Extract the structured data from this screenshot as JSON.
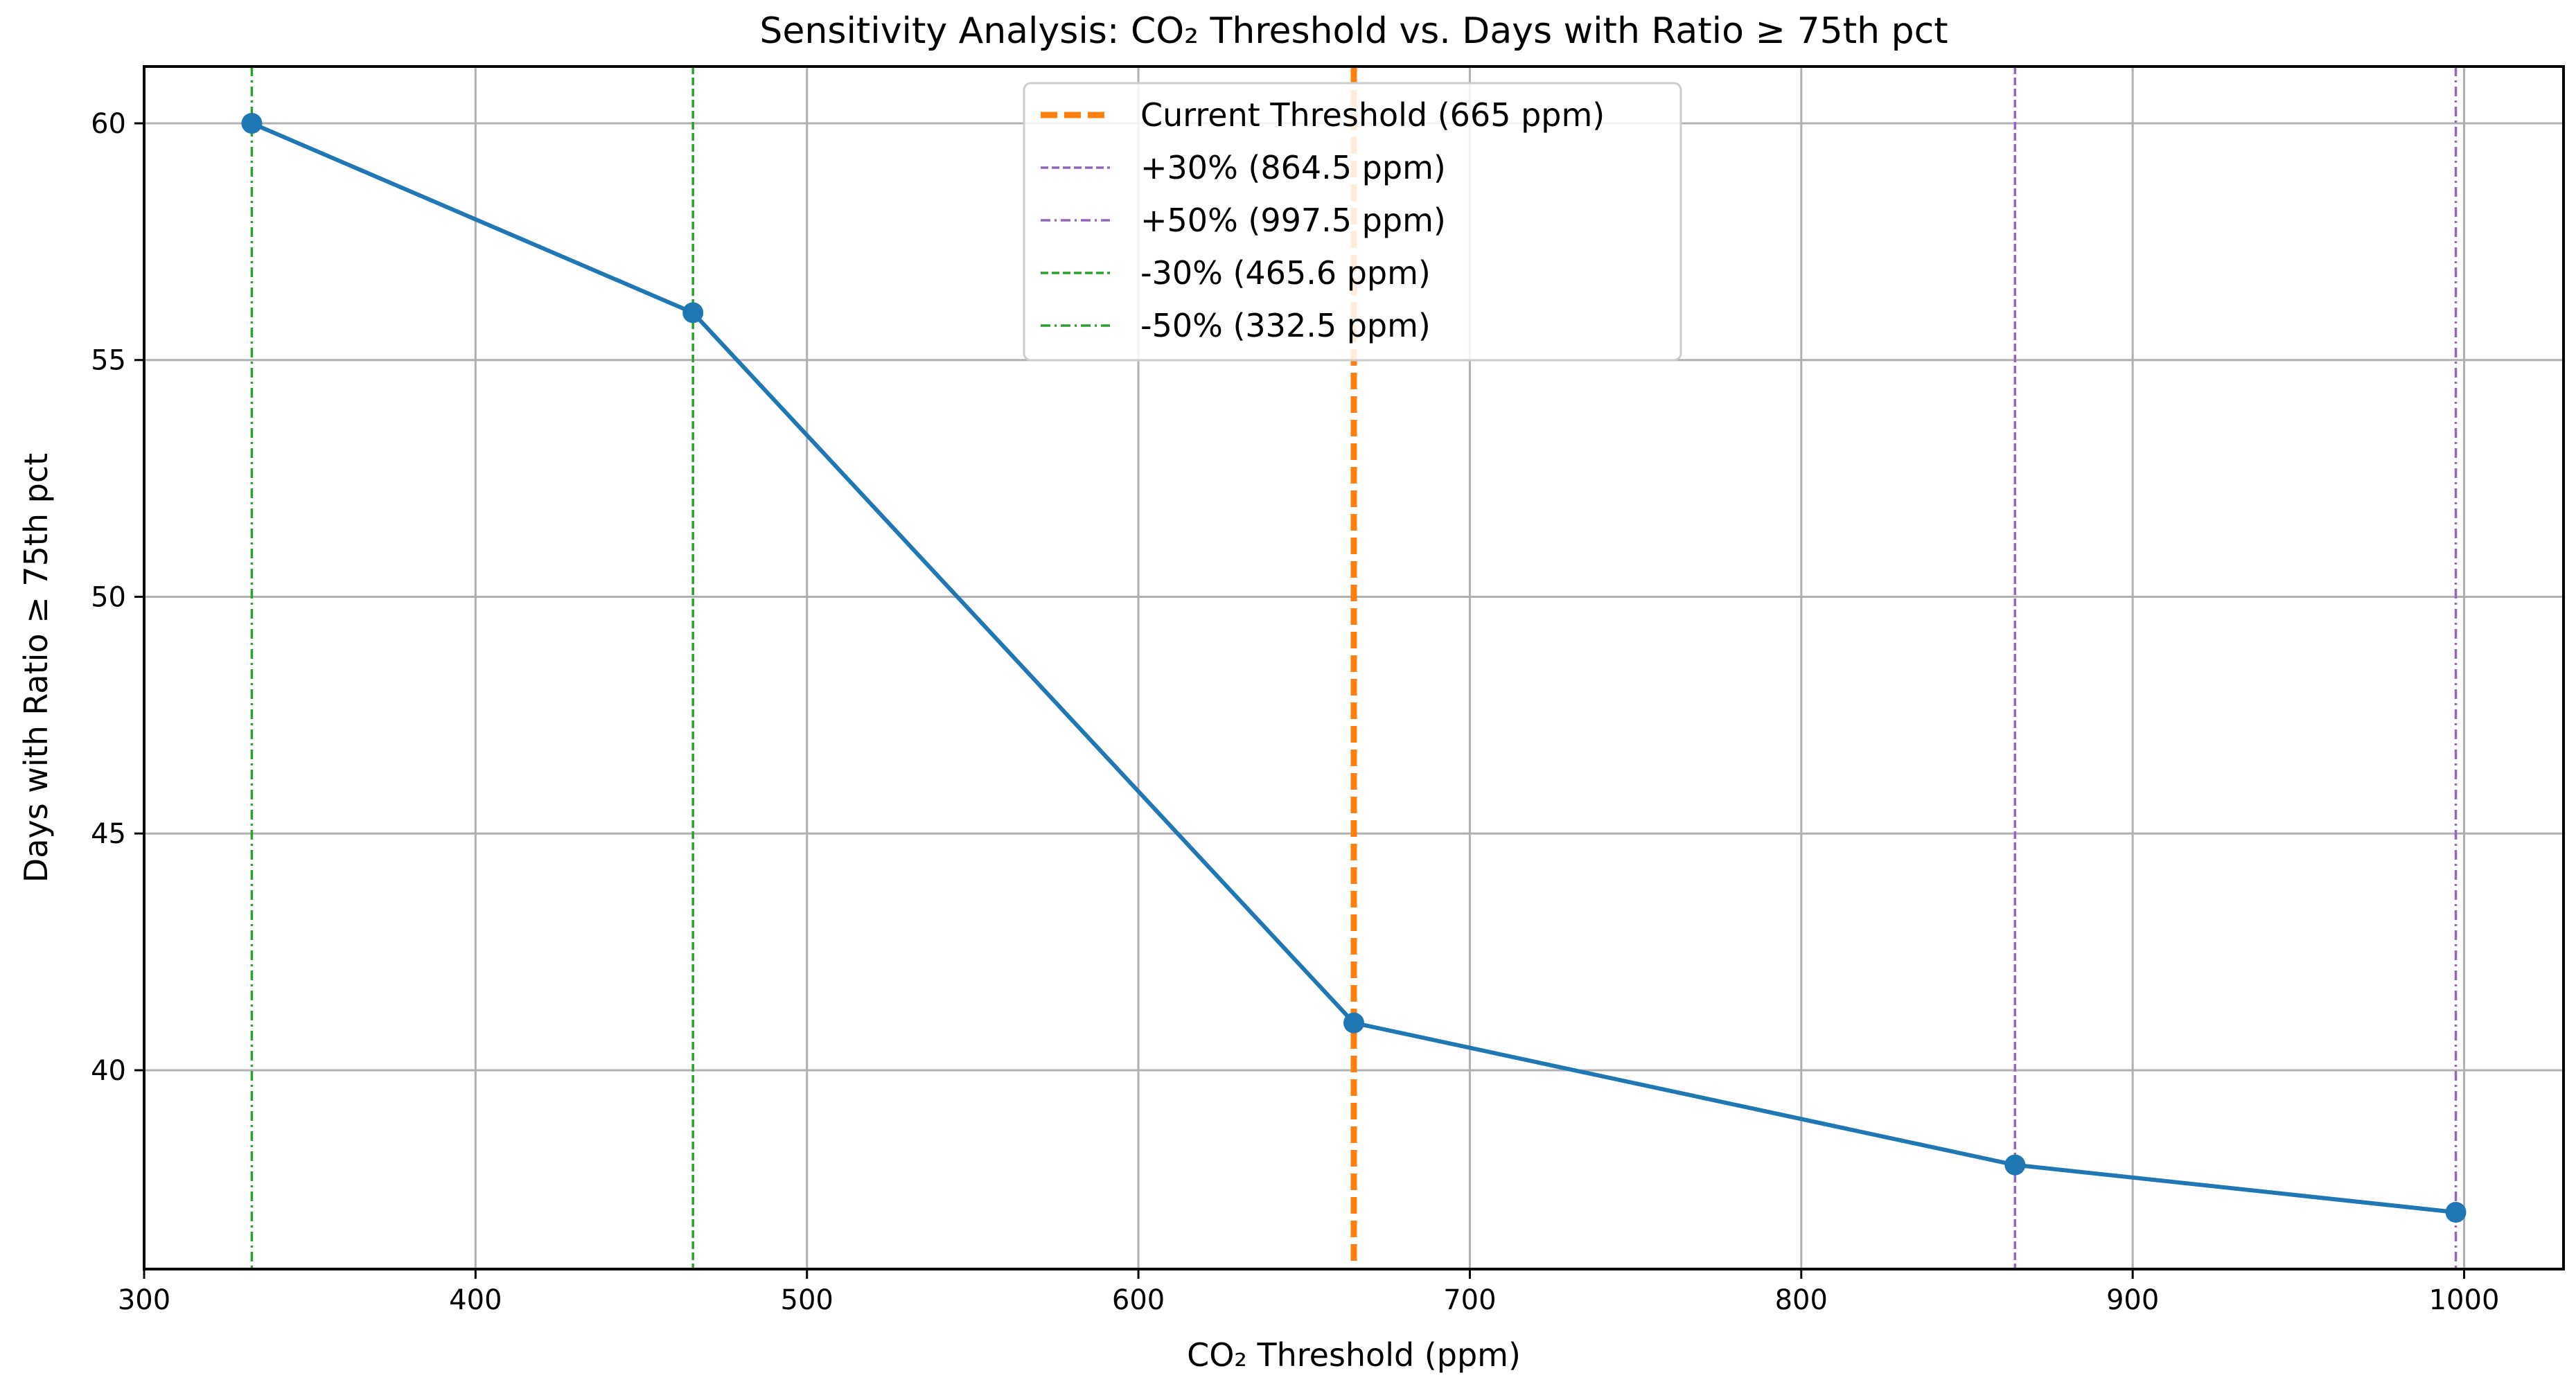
{
  "chart_data": {
    "type": "line",
    "title": "Sensitivity Analysis: CO₂ Threshold vs. Days with Ratio ≥ 75th pct",
    "xlabel": "CO₂ Threshold (ppm)",
    "ylabel": "Days with Ratio ≥ 75th pct",
    "xlim": [
      300,
      1030
    ],
    "ylim": [
      35.8,
      61.2
    ],
    "xticks": [
      300,
      400,
      500,
      600,
      700,
      800,
      900,
      1000
    ],
    "yticks": [
      40,
      45,
      50,
      55,
      60
    ],
    "grid": true,
    "legend_position": "top-center",
    "series": [
      {
        "color": "#1f77b4",
        "x": [
          332.5,
          465.6,
          665,
          864.5,
          997.5
        ],
        "y": [
          60,
          56,
          41,
          38,
          37
        ]
      }
    ],
    "reference_lines": [
      {
        "x": 665,
        "label": "Current Threshold (665 ppm)",
        "color": "#ff7f0e",
        "style": "dashed",
        "width": "thick"
      },
      {
        "x": 864.5,
        "label": "+30% (864.5 ppm)",
        "color": "#9467bd",
        "style": "dashed",
        "width": "thin"
      },
      {
        "x": 997.5,
        "label": "+50% (997.5 ppm)",
        "color": "#9467bd",
        "style": "dashdot",
        "width": "thin"
      },
      {
        "x": 465.6,
        "label": "-30% (465.6 ppm)",
        "color": "#2ca02c",
        "style": "dashed",
        "width": "thin"
      },
      {
        "x": 332.5,
        "label": "-50% (332.5 ppm)",
        "color": "#2ca02c",
        "style": "dashdot",
        "width": "thin"
      }
    ]
  }
}
